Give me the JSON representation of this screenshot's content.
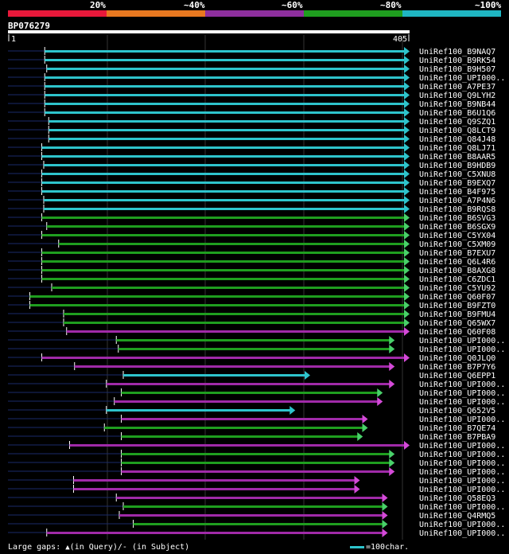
{
  "legend": {
    "labels": [
      "20%",
      "~40%",
      "~60%",
      "~80%",
      "~100%"
    ],
    "colors": [
      "#e8183a",
      "#e87820",
      "#8e2f9e",
      "#1f9e1f",
      "#1fb6c2"
    ]
  },
  "query": {
    "name": "BP076279",
    "start": "1",
    "end": "405"
  },
  "hits": [
    {
      "label": "UniRef100_B9NAQ7",
      "start": 38,
      "end": 405,
      "color": "cyan"
    },
    {
      "label": "UniRef100_B9RK54",
      "start": 38,
      "end": 405,
      "color": "cyan"
    },
    {
      "label": "UniRef100_B9H507",
      "start": 40,
      "end": 405,
      "color": "cyan"
    },
    {
      "label": "UniRef100_UPI000..",
      "start": 38,
      "end": 405,
      "color": "cyan"
    },
    {
      "label": "UniRef100_A7PE37",
      "start": 38,
      "end": 405,
      "color": "cyan"
    },
    {
      "label": "UniRef100_Q9LYH2",
      "start": 38,
      "end": 405,
      "color": "cyan"
    },
    {
      "label": "UniRef100_B9NB44",
      "start": 38,
      "end": 405,
      "color": "cyan"
    },
    {
      "label": "UniRef100_B6U1Q6",
      "start": 38,
      "end": 405,
      "color": "cyan"
    },
    {
      "label": "UniRef100_Q9SZQ1",
      "start": 42,
      "end": 405,
      "color": "cyan"
    },
    {
      "label": "UniRef100_Q8LCT9",
      "start": 42,
      "end": 405,
      "color": "cyan"
    },
    {
      "label": "UniRef100_Q84J48",
      "start": 42,
      "end": 405,
      "color": "cyan"
    },
    {
      "label": "UniRef100_Q8LJ71",
      "start": 35,
      "end": 405,
      "color": "cyan"
    },
    {
      "label": "UniRef100_B8AAR5",
      "start": 35,
      "end": 405,
      "color": "cyan"
    },
    {
      "label": "UniRef100_B9HDB9",
      "start": 37,
      "end": 405,
      "color": "cyan"
    },
    {
      "label": "UniRef100_C5XNU8",
      "start": 35,
      "end": 405,
      "color": "cyan"
    },
    {
      "label": "UniRef100_B9EXQ7",
      "start": 35,
      "end": 405,
      "color": "cyan"
    },
    {
      "label": "UniRef100_B4F975",
      "start": 35,
      "end": 405,
      "color": "cyan"
    },
    {
      "label": "UniRef100_A7P4N6",
      "start": 37,
      "end": 405,
      "color": "cyan"
    },
    {
      "label": "UniRef100_B9RQS8",
      "start": 37,
      "end": 405,
      "color": "cyan"
    },
    {
      "label": "UniRef100_B6SVG3",
      "start": 35,
      "end": 405,
      "color": "green"
    },
    {
      "label": "UniRef100_B6SGX9",
      "start": 40,
      "end": 405,
      "color": "green"
    },
    {
      "label": "UniRef100_C5YX04",
      "start": 35,
      "end": 405,
      "color": "green"
    },
    {
      "label": "UniRef100_C5XM09",
      "start": 52,
      "end": 405,
      "color": "green"
    },
    {
      "label": "UniRef100_B7EXU7",
      "start": 35,
      "end": 405,
      "color": "green"
    },
    {
      "label": "UniRef100_Q6L4R6",
      "start": 35,
      "end": 405,
      "color": "green"
    },
    {
      "label": "UniRef100_B8AXG8",
      "start": 35,
      "end": 405,
      "color": "green"
    },
    {
      "label": "UniRef100_C6ZDC1",
      "start": 35,
      "end": 405,
      "color": "green"
    },
    {
      "label": "UniRef100_C5YU92",
      "start": 45,
      "end": 405,
      "color": "green"
    },
    {
      "label": "UniRef100_Q60F07",
      "start": 23,
      "end": 405,
      "color": "green"
    },
    {
      "label": "UniRef100_B9FZT0",
      "start": 23,
      "end": 405,
      "color": "green"
    },
    {
      "label": "UniRef100_B9FMU4",
      "start": 57,
      "end": 405,
      "color": "green"
    },
    {
      "label": "UniRef100_Q65WX7",
      "start": 57,
      "end": 405,
      "color": "green"
    },
    {
      "label": "UniRef100_Q60F08",
      "start": 60,
      "end": 405,
      "color": "purple"
    },
    {
      "label": "UniRef100_UPI000..",
      "start": 110,
      "end": 390,
      "color": "green"
    },
    {
      "label": "UniRef100_UPI000..",
      "start": 112,
      "end": 390,
      "color": "green"
    },
    {
      "label": "UniRef100_Q0JLQ0",
      "start": 35,
      "end": 405,
      "color": "purple"
    },
    {
      "label": "UniRef100_B7P7Y6",
      "start": 68,
      "end": 390,
      "color": "purple"
    },
    {
      "label": "UniRef100_Q6EPP1",
      "start": 117,
      "end": 305,
      "color": "cyan"
    },
    {
      "label": "UniRef100_UPI000..",
      "start": 100,
      "end": 390,
      "color": "purple"
    },
    {
      "label": "UniRef100_UPI000..",
      "start": 115,
      "end": 378,
      "color": "green"
    },
    {
      "label": "UniRef100_UPI000..",
      "start": 108,
      "end": 378,
      "color": "purple"
    },
    {
      "label": "UniRef100_Q652V5",
      "start": 100,
      "end": 290,
      "color": "cyan"
    },
    {
      "label": "UniRef100_UPI000..",
      "start": 115,
      "end": 363,
      "color": "purple"
    },
    {
      "label": "UniRef100_B7QE74",
      "start": 98,
      "end": 363,
      "color": "green"
    },
    {
      "label": "UniRef100_B7PBA9",
      "start": 115,
      "end": 358,
      "color": "green"
    },
    {
      "label": "UniRef100_UPI000..",
      "start": 63,
      "end": 405,
      "color": "purple"
    },
    {
      "label": "UniRef100_UPI000..",
      "start": 115,
      "end": 390,
      "color": "green"
    },
    {
      "label": "UniRef100_UPI000..",
      "start": 115,
      "end": 390,
      "color": "green"
    },
    {
      "label": "UniRef100_UPI000..",
      "start": 115,
      "end": 390,
      "color": "purple"
    },
    {
      "label": "UniRef100_UPI000..",
      "start": 67,
      "end": 355,
      "color": "purple"
    },
    {
      "label": "UniRef100_UPI000..",
      "start": 67,
      "end": 355,
      "color": "purple"
    },
    {
      "label": "UniRef100_Q58EQ3",
      "start": 110,
      "end": 383,
      "color": "purple"
    },
    {
      "label": "UniRef100_UPI000..",
      "start": 117,
      "end": 383,
      "color": "green"
    },
    {
      "label": "UniRef100_Q4RMQ5",
      "start": 113,
      "end": 383,
      "color": "purple"
    },
    {
      "label": "UniRef100_UPI000..",
      "start": 127,
      "end": 383,
      "color": "green"
    },
    {
      "label": "UniRef100_UPI000..",
      "start": 40,
      "end": 383,
      "color": "purple"
    }
  ],
  "colors": {
    "cyan": "#2ec4cc",
    "green": "#1f9e1f",
    "purple": "#a02aa8",
    "grid": "#333333",
    "leader": "#1a2a6a",
    "arrowhead_cyan": "#2ec4cc",
    "arrowhead_green": "#49d06a",
    "arrowhead_purple": "#d44ad8"
  },
  "footer": {
    "gaps_text": "Large gaps: ",
    "query_text": "(in Query)/",
    "subject_text": "- (in Subject)",
    "scale_text": "=100char."
  }
}
